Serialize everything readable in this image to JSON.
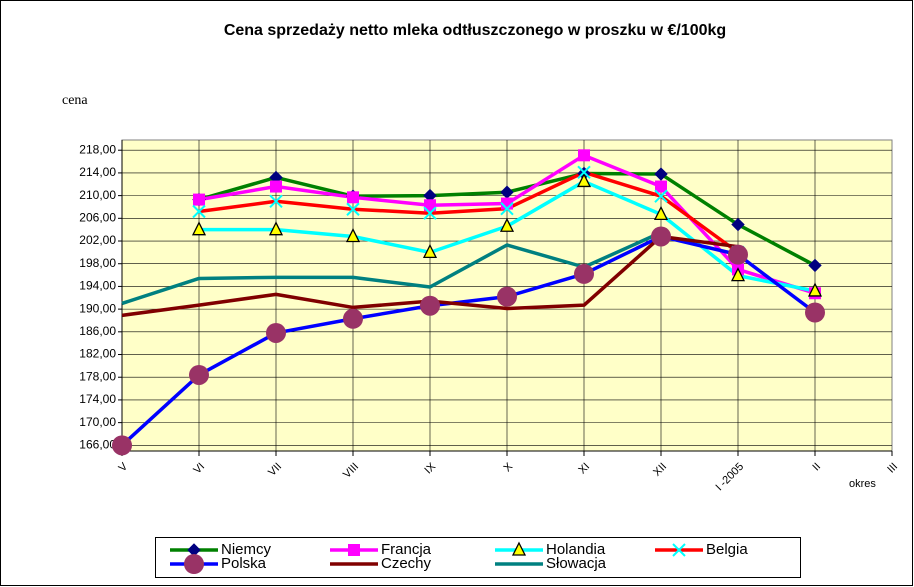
{
  "chart_data": {
    "type": "line",
    "title": "Cena sprzedaży netto mleka odtłuszczonego w proszku w €/100kg",
    "y_label": "cena",
    "x_label": "okres",
    "categories": [
      "V",
      "VI",
      "VII",
      "VIII",
      "IX",
      "X",
      "XI",
      "XII",
      "I -2005",
      "II",
      "III"
    ],
    "ylim": [
      165,
      219.8
    ],
    "yticks": [
      {
        "value": 166,
        "label": "166,00"
      },
      {
        "value": 170,
        "label": "170,00"
      },
      {
        "value": 174,
        "label": "174,00"
      },
      {
        "value": 178,
        "label": "178,00"
      },
      {
        "value": 182,
        "label": "182,00"
      },
      {
        "value": 186,
        "label": "186,00"
      },
      {
        "value": 190,
        "label": "190,00"
      },
      {
        "value": 194,
        "label": "194,00"
      },
      {
        "value": 198,
        "label": "198,00"
      },
      {
        "value": 202,
        "label": "202,00"
      },
      {
        "value": 206,
        "label": "206,00"
      },
      {
        "value": 210,
        "label": "210,00"
      },
      {
        "value": 214,
        "label": "214,00"
      },
      {
        "value": 218,
        "label": "218,00"
      }
    ],
    "grid": true,
    "legend": "bottom",
    "plot_background": "#ffffc8",
    "series": [
      {
        "name": "Niemcy",
        "color": "#008000",
        "marker": "diamond",
        "marker_color": "#000080",
        "values": [
          null,
          209.3,
          213.2,
          209.9,
          210.0,
          210.6,
          213.9,
          213.8,
          204.9,
          197.7,
          null
        ]
      },
      {
        "name": "Francja",
        "color": "#ff00ff",
        "marker": "square",
        "marker_color": "#ff00ff",
        "values": [
          null,
          209.3,
          211.6,
          209.7,
          208.3,
          208.6,
          217.1,
          211.6,
          197.0,
          192.8,
          null
        ]
      },
      {
        "name": "Holandia",
        "color": "#00ffff",
        "marker": "triangle",
        "marker_color": "#ffff00",
        "values": [
          null,
          204.0,
          204.0,
          202.8,
          200.0,
          204.6,
          212.5,
          206.7,
          195.9,
          193.2,
          null
        ]
      },
      {
        "name": "Belgia",
        "color": "#ff0000",
        "marker": "x",
        "marker_color": "#00ffff",
        "values": [
          null,
          207.2,
          209.0,
          207.6,
          206.9,
          207.7,
          214.1,
          209.9,
          200.0,
          null,
          null
        ]
      },
      {
        "name": "Polska",
        "color": "#0000ff",
        "marker": "circle",
        "marker_color": "#993366",
        "values": [
          166.0,
          178.4,
          185.8,
          188.3,
          190.6,
          192.2,
          196.2,
          202.8,
          199.6,
          189.4,
          null
        ]
      },
      {
        "name": "Czechy",
        "color": "#800000",
        "marker": "none",
        "marker_color": "#800000",
        "values": [
          188.9,
          190.7,
          192.6,
          190.3,
          191.4,
          190.1,
          190.7,
          202.8,
          201.0,
          null,
          null
        ]
      },
      {
        "name": "Słowacja",
        "color": "#008080",
        "marker": "none",
        "marker_color": "#008080",
        "values": [
          191.0,
          195.4,
          195.6,
          195.6,
          193.9,
          201.3,
          197.4,
          203.5,
          null,
          null,
          null
        ]
      }
    ]
  }
}
